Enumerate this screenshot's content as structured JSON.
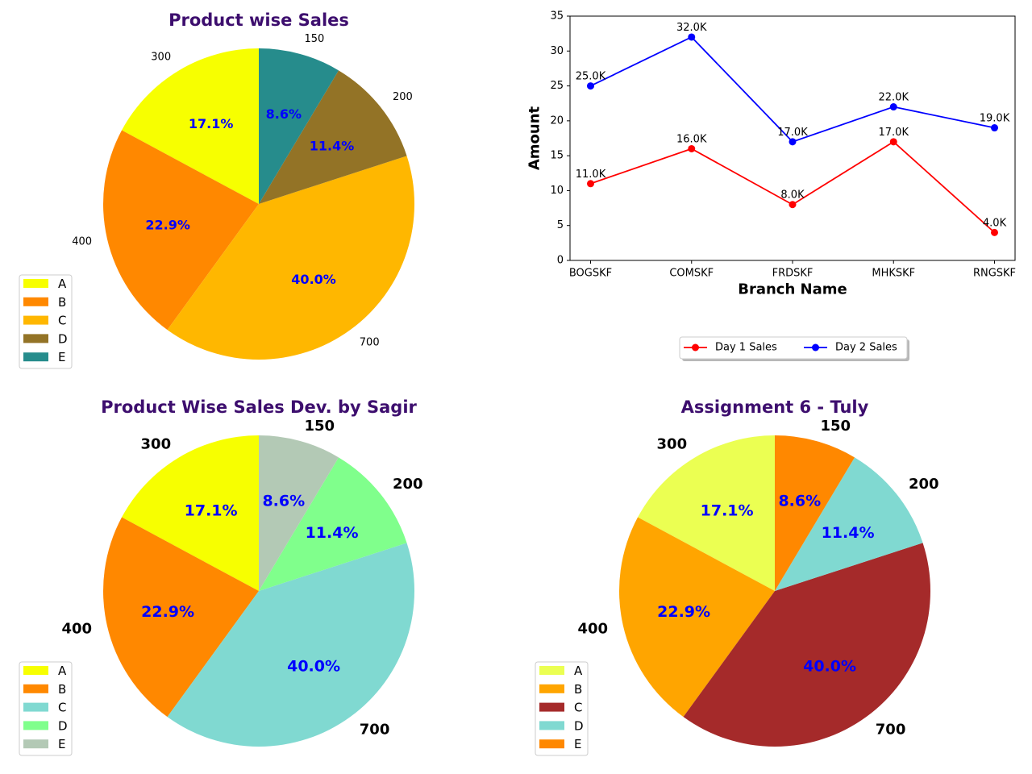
{
  "chart_data": [
    {
      "type": "pie",
      "title": "Product wise Sales",
      "labels": [
        "A",
        "B",
        "C",
        "D",
        "E"
      ],
      "values": [
        300,
        400,
        700,
        200,
        150
      ],
      "value_labels": [
        "300",
        "400",
        "700",
        "200",
        "150"
      ],
      "percent_labels": [
        "17.1%",
        "22.9%",
        "40.0%",
        "11.4%",
        "8.6%"
      ],
      "colors": [
        "#f7ff00",
        "#ff8800",
        "#ffb700",
        "#937326",
        "#268c8c"
      ],
      "legend": "lower-left",
      "style": "small"
    },
    {
      "type": "line",
      "title": "",
      "xlabel": "Branch Name",
      "ylabel": "Amount",
      "categories": [
        "BOGSKF",
        "COMSKF",
        "FRDSKF",
        "MHKSKF",
        "RNGSKF"
      ],
      "ylim": [
        0,
        35
      ],
      "yticks": [
        "0",
        "5",
        "10",
        "15",
        "20",
        "25",
        "30",
        "35"
      ],
      "series": [
        {
          "name": "Day 1 Sales",
          "color": "#ff0000",
          "values": [
            11,
            16,
            8,
            17,
            4
          ],
          "point_labels": [
            "11.0K",
            "16.0K",
            "8.0K",
            "17.0K",
            "4.0K"
          ]
        },
        {
          "name": "Day 2 Sales",
          "color": "#0000ff",
          "values": [
            25,
            32,
            17,
            22,
            19
          ],
          "point_labels": [
            "25.0K",
            "32.0K",
            "17.0K",
            "22.0K",
            "19.0K"
          ]
        }
      ],
      "grid": false,
      "legend": "below"
    },
    {
      "type": "pie",
      "title": "Product Wise Sales Dev. by Sagir",
      "labels": [
        "A",
        "B",
        "C",
        "D",
        "E"
      ],
      "values": [
        300,
        400,
        700,
        200,
        150
      ],
      "value_labels": [
        "300",
        "400",
        "700",
        "200",
        "150"
      ],
      "percent_labels": [
        "17.1%",
        "22.9%",
        "40.0%",
        "11.4%",
        "8.6%"
      ],
      "colors": [
        "#f7ff00",
        "#ff8800",
        "#80d9d1",
        "#80ff8c",
        "#b3c9b5"
      ],
      "legend": "lower-left",
      "style": "bold"
    },
    {
      "type": "pie",
      "title": "Assignment 6 - Tuly",
      "labels": [
        "A",
        "B",
        "C",
        "D",
        "E"
      ],
      "values": [
        300,
        400,
        700,
        200,
        150
      ],
      "value_labels": [
        "300",
        "400",
        "700",
        "200",
        "150"
      ],
      "percent_labels": [
        "17.1%",
        "22.9%",
        "40.0%",
        "11.4%",
        "8.6%"
      ],
      "colors": [
        "#ebff52",
        "#ffa500",
        "#a52a2a",
        "#80d9d1",
        "#ff8800"
      ],
      "legend": "lower-left",
      "style": "bold"
    }
  ]
}
